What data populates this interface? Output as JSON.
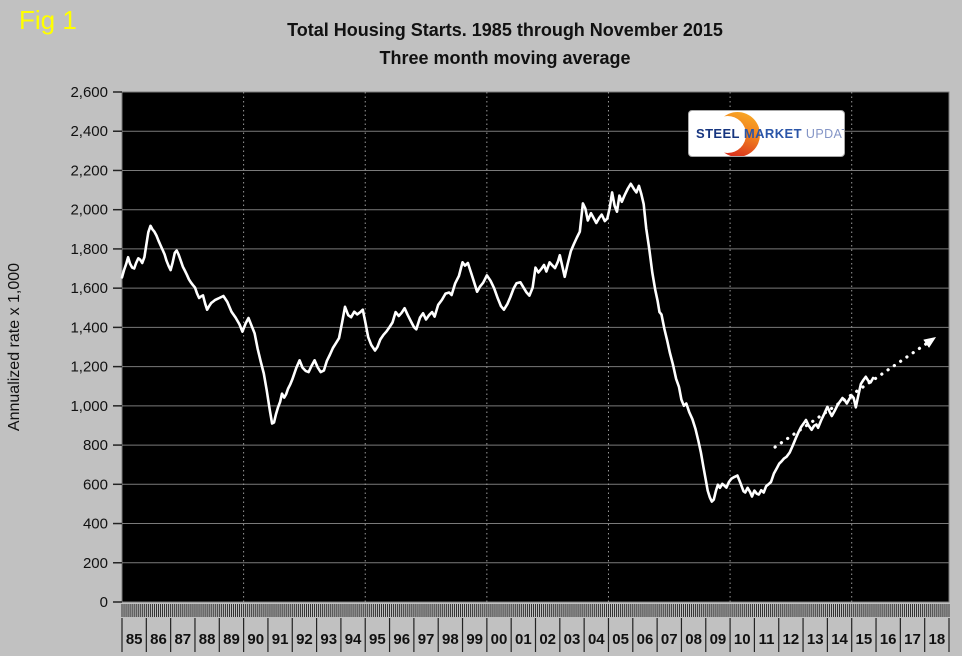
{
  "figure": {
    "label": "Fig 1"
  },
  "logo": {
    "word1": "STEEL",
    "word2": "MARKET",
    "word3": "UPDATE"
  },
  "colors": {
    "page_bg": "#c1c1c1",
    "plot_bg": "#000000",
    "line": "#ffffff",
    "grid": "#7a7a7a",
    "grid_dotted": "#9a9a9a",
    "axis_text": "#111111",
    "tick": "#222222",
    "fig_label": "#ffff00",
    "logo_steel": "#16357f",
    "logo_market": "#2a55a8",
    "logo_update": "#8495c6"
  },
  "chart_data": {
    "type": "line",
    "title": "Total Housing Starts. 1985 through November 2015",
    "subtitle": "Three month moving average",
    "xlabel": "",
    "ylabel": "Annualized rate x 1,000",
    "ylim": [
      0,
      2600
    ],
    "y_tick_step": 200,
    "y_tick_labels": [
      "0",
      "200",
      "400",
      "600",
      "800",
      "1,000",
      "1,200",
      "1,400",
      "1,600",
      "1,800",
      "2,000",
      "2,200",
      "2,400",
      "2,600"
    ],
    "x_range": [
      1985,
      2019
    ],
    "x_year_labels": [
      "85",
      "86",
      "87",
      "88",
      "89",
      "90",
      "91",
      "92",
      "93",
      "94",
      "95",
      "96",
      "97",
      "98",
      "99",
      "00",
      "01",
      "02",
      "03",
      "04",
      "05",
      "06",
      "07",
      "08",
      "09",
      "10",
      "11",
      "12",
      "13",
      "14",
      "15",
      "16",
      "17",
      "18"
    ],
    "x_gridline_years": [
      1990,
      1995,
      2000,
      2005,
      2010,
      2015
    ],
    "grid": {
      "horizontal": "solid",
      "vertical": "dotted every 5 years"
    },
    "legend_position": "none",
    "series": [
      {
        "name": "Total housing starts, 3-month moving average (annualized rate x 1,000)",
        "color": "#ffffff",
        "points": [
          [
            1985.0,
            1655
          ],
          [
            1985.08,
            1690
          ],
          [
            1985.17,
            1722
          ],
          [
            1985.25,
            1758
          ],
          [
            1985.33,
            1725
          ],
          [
            1985.42,
            1705
          ],
          [
            1985.5,
            1700
          ],
          [
            1985.58,
            1728
          ],
          [
            1985.67,
            1752
          ],
          [
            1985.75,
            1745
          ],
          [
            1985.83,
            1728
          ],
          [
            1985.92,
            1758
          ],
          [
            1986.0,
            1820
          ],
          [
            1986.08,
            1885
          ],
          [
            1986.17,
            1918
          ],
          [
            1986.25,
            1900
          ],
          [
            1986.33,
            1888
          ],
          [
            1986.42,
            1868
          ],
          [
            1986.5,
            1842
          ],
          [
            1986.58,
            1820
          ],
          [
            1986.67,
            1795
          ],
          [
            1986.75,
            1772
          ],
          [
            1986.83,
            1740
          ],
          [
            1986.92,
            1712
          ],
          [
            1987.0,
            1692
          ],
          [
            1987.08,
            1730
          ],
          [
            1987.17,
            1780
          ],
          [
            1987.25,
            1792
          ],
          [
            1987.33,
            1770
          ],
          [
            1987.42,
            1738
          ],
          [
            1987.5,
            1710
          ],
          [
            1987.58,
            1690
          ],
          [
            1987.67,
            1668
          ],
          [
            1987.75,
            1645
          ],
          [
            1987.83,
            1630
          ],
          [
            1987.92,
            1615
          ],
          [
            1988.0,
            1603
          ],
          [
            1988.08,
            1575
          ],
          [
            1988.17,
            1550
          ],
          [
            1988.25,
            1558
          ],
          [
            1988.33,
            1563
          ],
          [
            1988.42,
            1520
          ],
          [
            1988.5,
            1490
          ],
          [
            1988.58,
            1508
          ],
          [
            1988.67,
            1525
          ],
          [
            1988.75,
            1532
          ],
          [
            1988.83,
            1540
          ],
          [
            1988.92,
            1545
          ],
          [
            1989.0,
            1550
          ],
          [
            1989.17,
            1560
          ],
          [
            1989.33,
            1530
          ],
          [
            1989.5,
            1480
          ],
          [
            1989.67,
            1450
          ],
          [
            1989.83,
            1415
          ],
          [
            1989.95,
            1378
          ],
          [
            1990.08,
            1420
          ],
          [
            1990.2,
            1448
          ],
          [
            1990.33,
            1408
          ],
          [
            1990.45,
            1370
          ],
          [
            1990.58,
            1290
          ],
          [
            1990.7,
            1228
          ],
          [
            1990.83,
            1165
          ],
          [
            1990.95,
            1080
          ],
          [
            1991.08,
            975
          ],
          [
            1991.17,
            910
          ],
          [
            1991.25,
            915
          ],
          [
            1991.33,
            958
          ],
          [
            1991.42,
            995
          ],
          [
            1991.5,
            1020
          ],
          [
            1991.58,
            1062
          ],
          [
            1991.67,
            1042
          ],
          [
            1991.75,
            1060
          ],
          [
            1991.83,
            1088
          ],
          [
            1991.92,
            1110
          ],
          [
            1992.0,
            1135
          ],
          [
            1992.17,
            1195
          ],
          [
            1992.3,
            1232
          ],
          [
            1992.42,
            1195
          ],
          [
            1992.55,
            1178
          ],
          [
            1992.67,
            1172
          ],
          [
            1992.8,
            1205
          ],
          [
            1992.92,
            1232
          ],
          [
            1993.05,
            1195
          ],
          [
            1993.17,
            1172
          ],
          [
            1993.3,
            1180
          ],
          [
            1993.42,
            1228
          ],
          [
            1993.55,
            1262
          ],
          [
            1993.67,
            1295
          ],
          [
            1993.8,
            1320
          ],
          [
            1993.92,
            1345
          ],
          [
            1994.05,
            1425
          ],
          [
            1994.17,
            1505
          ],
          [
            1994.3,
            1462
          ],
          [
            1994.42,
            1452
          ],
          [
            1994.55,
            1480
          ],
          [
            1994.67,
            1466
          ],
          [
            1994.8,
            1478
          ],
          [
            1994.9,
            1490
          ],
          [
            1995.0,
            1430
          ],
          [
            1995.12,
            1350
          ],
          [
            1995.25,
            1310
          ],
          [
            1995.4,
            1282
          ],
          [
            1995.5,
            1300
          ],
          [
            1995.62,
            1338
          ],
          [
            1995.75,
            1362
          ],
          [
            1995.88,
            1380
          ],
          [
            1996.0,
            1402
          ],
          [
            1996.12,
            1425
          ],
          [
            1996.25,
            1478
          ],
          [
            1996.38,
            1458
          ],
          [
            1996.5,
            1475
          ],
          [
            1996.62,
            1498
          ],
          [
            1996.75,
            1462
          ],
          [
            1996.88,
            1430
          ],
          [
            1997.0,
            1402
          ],
          [
            1997.1,
            1390
          ],
          [
            1997.25,
            1450
          ],
          [
            1997.38,
            1472
          ],
          [
            1997.5,
            1440
          ],
          [
            1997.62,
            1462
          ],
          [
            1997.75,
            1478
          ],
          [
            1997.85,
            1455
          ],
          [
            1998.0,
            1515
          ],
          [
            1998.15,
            1540
          ],
          [
            1998.3,
            1572
          ],
          [
            1998.45,
            1578
          ],
          [
            1998.55,
            1565
          ],
          [
            1998.7,
            1625
          ],
          [
            1998.85,
            1662
          ],
          [
            1999.0,
            1732
          ],
          [
            1999.1,
            1715
          ],
          [
            1999.22,
            1728
          ],
          [
            1999.35,
            1680
          ],
          [
            1999.45,
            1640
          ],
          [
            1999.6,
            1582
          ],
          [
            1999.72,
            1608
          ],
          [
            1999.85,
            1628
          ],
          [
            2000.0,
            1665
          ],
          [
            2000.15,
            1638
          ],
          [
            2000.3,
            1600
          ],
          [
            2000.45,
            1548
          ],
          [
            2000.58,
            1508
          ],
          [
            2000.7,
            1490
          ],
          [
            2000.85,
            1520
          ],
          [
            2000.97,
            1555
          ],
          [
            2001.1,
            1598
          ],
          [
            2001.22,
            1625
          ],
          [
            2001.38,
            1630
          ],
          [
            2001.5,
            1605
          ],
          [
            2001.62,
            1580
          ],
          [
            2001.75,
            1562
          ],
          [
            2001.88,
            1602
          ],
          [
            2002.0,
            1705
          ],
          [
            2002.12,
            1680
          ],
          [
            2002.25,
            1700
          ],
          [
            2002.35,
            1718
          ],
          [
            2002.45,
            1685
          ],
          [
            2002.58,
            1732
          ],
          [
            2002.7,
            1715
          ],
          [
            2002.8,
            1702
          ],
          [
            2002.92,
            1735
          ],
          [
            2003.0,
            1768
          ],
          [
            2003.1,
            1712
          ],
          [
            2003.2,
            1658
          ],
          [
            2003.32,
            1722
          ],
          [
            2003.45,
            1788
          ],
          [
            2003.58,
            1825
          ],
          [
            2003.7,
            1858
          ],
          [
            2003.82,
            1888
          ],
          [
            2003.95,
            2032
          ],
          [
            2004.05,
            2005
          ],
          [
            2004.15,
            1945
          ],
          [
            2004.28,
            1982
          ],
          [
            2004.4,
            1955
          ],
          [
            2004.5,
            1932
          ],
          [
            2004.62,
            1958
          ],
          [
            2004.72,
            1975
          ],
          [
            2004.85,
            1942
          ],
          [
            2004.95,
            1955
          ],
          [
            2005.05,
            2008
          ],
          [
            2005.15,
            2088
          ],
          [
            2005.25,
            2020
          ],
          [
            2005.35,
            1990
          ],
          [
            2005.45,
            2072
          ],
          [
            2005.55,
            2040
          ],
          [
            2005.68,
            2078
          ],
          [
            2005.8,
            2108
          ],
          [
            2005.92,
            2132
          ],
          [
            2006.05,
            2105
          ],
          [
            2006.15,
            2088
          ],
          [
            2006.25,
            2122
          ],
          [
            2006.35,
            2080
          ],
          [
            2006.45,
            2028
          ],
          [
            2006.55,
            1905
          ],
          [
            2006.68,
            1798
          ],
          [
            2006.8,
            1680
          ],
          [
            2006.92,
            1592
          ],
          [
            2007.02,
            1535
          ],
          [
            2007.1,
            1478
          ],
          [
            2007.18,
            1465
          ],
          [
            2007.3,
            1392
          ],
          [
            2007.42,
            1330
          ],
          [
            2007.52,
            1272
          ],
          [
            2007.65,
            1212
          ],
          [
            2007.78,
            1138
          ],
          [
            2007.9,
            1096
          ],
          [
            2008.0,
            1032
          ],
          [
            2008.1,
            1000
          ],
          [
            2008.2,
            1012
          ],
          [
            2008.32,
            968
          ],
          [
            2008.45,
            932
          ],
          [
            2008.58,
            882
          ],
          [
            2008.7,
            818
          ],
          [
            2008.8,
            762
          ],
          [
            2008.9,
            692
          ],
          [
            2009.0,
            622
          ],
          [
            2009.08,
            568
          ],
          [
            2009.17,
            532
          ],
          [
            2009.25,
            512
          ],
          [
            2009.33,
            522
          ],
          [
            2009.42,
            568
          ],
          [
            2009.5,
            598
          ],
          [
            2009.58,
            582
          ],
          [
            2009.68,
            602
          ],
          [
            2009.78,
            592
          ],
          [
            2009.85,
            583
          ],
          [
            2009.95,
            612
          ],
          [
            2010.05,
            628
          ],
          [
            2010.18,
            638
          ],
          [
            2010.3,
            645
          ],
          [
            2010.42,
            608
          ],
          [
            2010.55,
            565
          ],
          [
            2010.62,
            558
          ],
          [
            2010.72,
            582
          ],
          [
            2010.82,
            562
          ],
          [
            2010.9,
            538
          ],
          [
            2011.0,
            568
          ],
          [
            2011.1,
            552
          ],
          [
            2011.18,
            548
          ],
          [
            2011.28,
            570
          ],
          [
            2011.38,
            558
          ],
          [
            2011.48,
            590
          ],
          [
            2011.58,
            600
          ],
          [
            2011.68,
            612
          ],
          [
            2011.8,
            655
          ],
          [
            2011.92,
            682
          ],
          [
            2012.02,
            705
          ],
          [
            2012.12,
            718
          ],
          [
            2012.22,
            732
          ],
          [
            2012.32,
            740
          ],
          [
            2012.45,
            762
          ],
          [
            2012.58,
            798
          ],
          [
            2012.7,
            835
          ],
          [
            2012.82,
            868
          ],
          [
            2012.92,
            892
          ],
          [
            2013.05,
            915
          ],
          [
            2013.12,
            928
          ],
          [
            2013.22,
            902
          ],
          [
            2013.35,
            878
          ],
          [
            2013.45,
            898
          ],
          [
            2013.55,
            905
          ],
          [
            2013.62,
            888
          ],
          [
            2013.75,
            928
          ],
          [
            2013.88,
            962
          ],
          [
            2014.0,
            995
          ],
          [
            2014.1,
            968
          ],
          [
            2014.18,
            948
          ],
          [
            2014.3,
            975
          ],
          [
            2014.42,
            1005
          ],
          [
            2014.52,
            1022
          ],
          [
            2014.62,
            1040
          ],
          [
            2014.72,
            1028
          ],
          [
            2014.8,
            1012
          ],
          [
            2014.9,
            1035
          ],
          [
            2015.0,
            1052
          ],
          [
            2015.08,
            1040
          ],
          [
            2015.17,
            992
          ],
          [
            2015.28,
            1058
          ],
          [
            2015.38,
            1112
          ],
          [
            2015.48,
            1132
          ],
          [
            2015.58,
            1148
          ],
          [
            2015.68,
            1128
          ],
          [
            2015.78,
            1120
          ],
          [
            2015.88,
            1142
          ]
        ]
      }
    ],
    "trend_arrow": {
      "style": "dotted",
      "color": "#ffffff",
      "from": [
        2011.85,
        790
      ],
      "to": [
        2018.4,
        1345
      ]
    }
  }
}
